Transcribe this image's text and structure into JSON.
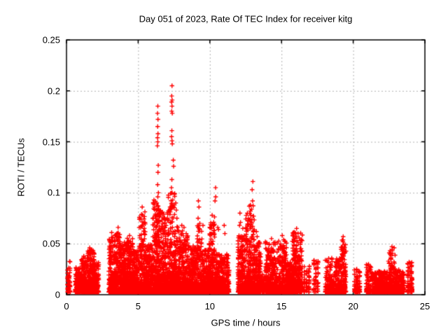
{
  "chart_data": {
    "type": "scatter",
    "title": "Day 051 of 2023, Rate Of TEC Index for receiver kitg",
    "xlabel": "GPS time / hours",
    "ylabel": "ROTI / TECUs",
    "xlim": [
      0,
      25
    ],
    "ylim": [
      0,
      0.25
    ],
    "xticks": [
      {
        "v": 0,
        "label": "0"
      },
      {
        "v": 5,
        "label": "5"
      },
      {
        "v": 10,
        "label": "10"
      },
      {
        "v": 15,
        "label": "15"
      },
      {
        "v": 20,
        "label": "20"
      },
      {
        "v": 25,
        "label": "25"
      }
    ],
    "yticks": [
      {
        "v": 0,
        "label": "0"
      },
      {
        "v": 0.05,
        "label": "0.05"
      },
      {
        "v": 0.1,
        "label": "0.1"
      },
      {
        "v": 0.15,
        "label": "0.15"
      },
      {
        "v": 0.2,
        "label": "0.2"
      },
      {
        "v": 0.25,
        "label": "0.25"
      }
    ],
    "grid": "dashed, at interior major ticks",
    "legend": "none",
    "marker": {
      "shape": "plus",
      "color": "#ff0000",
      "size": 7
    },
    "grid_color": "#b0b0b0",
    "border_color": "#000000",
    "seed": 42,
    "v_min": 0.0025,
    "dense_segments": [
      {
        "t0": 0.05,
        "t1": 0.28,
        "n": 45,
        "vmax": 0.033,
        "k": 2.0,
        "cols": 3
      },
      {
        "t0": 0.6,
        "t1": 1.05,
        "n": 150,
        "vmax": 0.027,
        "k": 2.4
      },
      {
        "t0": 1.05,
        "t1": 1.45,
        "n": 190,
        "vmax": 0.038,
        "k": 2.6
      },
      {
        "t0": 1.45,
        "t1": 1.95,
        "n": 250,
        "vmax": 0.044,
        "k": 2.6
      },
      {
        "t0": 1.95,
        "t1": 2.25,
        "n": 140,
        "vmax": 0.032,
        "k": 2.4
      },
      {
        "t0": 2.95,
        "t1": 3.35,
        "n": 200,
        "vmax": 0.058,
        "k": 3.4
      },
      {
        "t0": 3.35,
        "t1": 3.8,
        "n": 260,
        "vmax": 0.062,
        "k": 3.2
      },
      {
        "t0": 3.8,
        "t1": 4.2,
        "n": 250,
        "vmax": 0.052,
        "k": 3.0
      },
      {
        "t0": 4.2,
        "t1": 4.65,
        "n": 240,
        "vmax": 0.056,
        "k": 3.0
      },
      {
        "t0": 4.65,
        "t1": 5.05,
        "n": 210,
        "vmax": 0.044,
        "k": 2.8
      },
      {
        "t0": 5.05,
        "t1": 5.5,
        "n": 250,
        "vmax": 0.082,
        "k": 3.6
      },
      {
        "t0": 5.5,
        "t1": 6.0,
        "n": 260,
        "vmax": 0.05,
        "k": 2.9
      },
      {
        "t0": 6.0,
        "t1": 6.3,
        "n": 190,
        "vmax": 0.095,
        "k": 3.2
      },
      {
        "t0": 6.3,
        "t1": 6.55,
        "n": 170,
        "vmax": 0.088,
        "k": 2.7
      },
      {
        "t0": 6.55,
        "t1": 7.1,
        "n": 310,
        "vmax": 0.082,
        "k": 3.1
      },
      {
        "t0": 7.1,
        "t1": 7.55,
        "n": 250,
        "vmax": 0.1,
        "k": 2.8
      },
      {
        "t0": 7.55,
        "t1": 8.1,
        "n": 290,
        "vmax": 0.068,
        "k": 3.1
      },
      {
        "t0": 8.1,
        "t1": 8.6,
        "n": 250,
        "vmax": 0.058,
        "k": 3.0
      },
      {
        "t0": 8.6,
        "t1": 9.1,
        "n": 230,
        "vmax": 0.048,
        "k": 2.8
      },
      {
        "t0": 9.1,
        "t1": 9.45,
        "n": 160,
        "vmax": 0.068,
        "k": 2.7
      },
      {
        "t0": 9.45,
        "t1": 9.95,
        "n": 220,
        "vmax": 0.044,
        "k": 2.7
      },
      {
        "t0": 9.95,
        "t1": 10.35,
        "n": 210,
        "vmax": 0.078,
        "k": 2.9
      },
      {
        "t0": 10.35,
        "t1": 11.35,
        "n": 360,
        "vmax": 0.04,
        "k": 2.6
      },
      {
        "t0": 11.95,
        "t1": 12.45,
        "n": 230,
        "vmax": 0.058,
        "k": 2.9
      },
      {
        "t0": 12.45,
        "t1": 13.1,
        "n": 320,
        "vmax": 0.088,
        "k": 3.3
      },
      {
        "t0": 13.1,
        "t1": 13.55,
        "n": 210,
        "vmax": 0.052,
        "k": 2.9
      },
      {
        "t0": 13.55,
        "t1": 13.85,
        "n": 70,
        "vmax": 0.02,
        "k": 2.0
      },
      {
        "t0": 13.85,
        "t1": 14.7,
        "n": 350,
        "vmax": 0.052,
        "k": 3.0
      },
      {
        "t0": 14.7,
        "t1": 15.35,
        "n": 250,
        "vmax": 0.054,
        "k": 3.0
      },
      {
        "t0": 15.35,
        "t1": 15.75,
        "n": 160,
        "vmax": 0.032,
        "k": 2.4
      },
      {
        "t0": 15.75,
        "t1": 16.45,
        "n": 310,
        "vmax": 0.062,
        "k": 2.5
      },
      {
        "t0": 16.5,
        "t1": 17.0,
        "n": 55,
        "vmax": 0.028,
        "k": 1.8,
        "cols": 3
      },
      {
        "t0": 17.2,
        "t1": 17.6,
        "n": 50,
        "vmax": 0.035,
        "k": 1.8,
        "cols": 3
      },
      {
        "t0": 18.05,
        "t1": 19.15,
        "n": 320,
        "vmax": 0.036,
        "k": 2.7
      },
      {
        "t0": 19.15,
        "t1": 19.5,
        "n": 140,
        "vmax": 0.054,
        "k": 2.4
      },
      {
        "t0": 20.05,
        "t1": 20.5,
        "n": 85,
        "vmax": 0.026,
        "k": 2.1,
        "cols": 4
      },
      {
        "t0": 20.9,
        "t1": 21.25,
        "n": 85,
        "vmax": 0.03,
        "k": 2.2
      },
      {
        "t0": 21.3,
        "t1": 22.45,
        "n": 320,
        "vmax": 0.023,
        "k": 2.3
      },
      {
        "t0": 22.45,
        "t1": 22.95,
        "n": 190,
        "vmax": 0.046,
        "k": 2.8
      },
      {
        "t0": 22.95,
        "t1": 23.55,
        "n": 170,
        "vmax": 0.025,
        "k": 2.3
      },
      {
        "t0": 23.75,
        "t1": 24.15,
        "n": 100,
        "vmax": 0.032,
        "k": 2.2,
        "cols": 3
      }
    ],
    "peak_points": [
      [
        1.62,
        0.046
      ],
      [
        1.58,
        0.042
      ],
      [
        3.15,
        0.061
      ],
      [
        3.22,
        0.056
      ],
      [
        3.1,
        0.051
      ],
      [
        3.6,
        0.066
      ],
      [
        3.55,
        0.06
      ],
      [
        3.66,
        0.057
      ],
      [
        3.72,
        0.052
      ],
      [
        4.4,
        0.058
      ],
      [
        4.34,
        0.053
      ],
      [
        5.28,
        0.086
      ],
      [
        5.31,
        0.078
      ],
      [
        6.1,
        0.093
      ],
      [
        6.14,
        0.086
      ],
      [
        6.2,
        0.079
      ],
      [
        6.37,
        0.185
      ],
      [
        6.35,
        0.178
      ],
      [
        6.38,
        0.172
      ],
      [
        6.36,
        0.165
      ],
      [
        6.38,
        0.158
      ],
      [
        6.35,
        0.154
      ],
      [
        6.37,
        0.15
      ],
      [
        6.34,
        0.146
      ],
      [
        6.4,
        0.127
      ],
      [
        6.38,
        0.12
      ],
      [
        6.36,
        0.108
      ],
      [
        6.41,
        0.1
      ],
      [
        6.37,
        0.096
      ],
      [
        6.3,
        0.09
      ],
      [
        6.26,
        0.083
      ],
      [
        6.6,
        0.065
      ],
      [
        6.7,
        0.081
      ],
      [
        6.85,
        0.075
      ],
      [
        6.95,
        0.068
      ],
      [
        7.36,
        0.205
      ],
      [
        7.34,
        0.195
      ],
      [
        7.37,
        0.191
      ],
      [
        7.33,
        0.189
      ],
      [
        7.36,
        0.185
      ],
      [
        7.34,
        0.18
      ],
      [
        7.38,
        0.178
      ],
      [
        7.35,
        0.161
      ],
      [
        7.33,
        0.155
      ],
      [
        7.36,
        0.151
      ],
      [
        7.38,
        0.148
      ],
      [
        7.45,
        0.132
      ],
      [
        7.47,
        0.126
      ],
      [
        7.35,
        0.113
      ],
      [
        7.32,
        0.105
      ],
      [
        7.37,
        0.1
      ],
      [
        7.41,
        0.093
      ],
      [
        7.62,
        0.09
      ],
      [
        7.66,
        0.083
      ],
      [
        7.7,
        0.075
      ],
      [
        8.2,
        0.066
      ],
      [
        8.35,
        0.06
      ],
      [
        9.2,
        0.092
      ],
      [
        9.24,
        0.086
      ],
      [
        9.18,
        0.075
      ],
      [
        9.3,
        0.07
      ],
      [
        9.52,
        0.068
      ],
      [
        10.4,
        0.105
      ],
      [
        10.41,
        0.096
      ],
      [
        10.36,
        0.092
      ],
      [
        10.16,
        0.078
      ],
      [
        10.55,
        0.066
      ],
      [
        10.6,
        0.064
      ],
      [
        11.0,
        0.068
      ],
      [
        11.05,
        0.06
      ],
      [
        12.1,
        0.08
      ],
      [
        12.14,
        0.071
      ],
      [
        12.07,
        0.068
      ],
      [
        12.3,
        0.065
      ],
      [
        12.25,
        0.057
      ],
      [
        13.0,
        0.111
      ],
      [
        12.95,
        0.103
      ],
      [
        12.98,
        0.092
      ],
      [
        12.9,
        0.084
      ],
      [
        12.85,
        0.078
      ],
      [
        13.02,
        0.077
      ],
      [
        12.8,
        0.072
      ],
      [
        12.92,
        0.07
      ],
      [
        12.88,
        0.066
      ],
      [
        13.05,
        0.062
      ],
      [
        13.25,
        0.062
      ],
      [
        13.3,
        0.057
      ],
      [
        14.3,
        0.055
      ],
      [
        14.45,
        0.051
      ],
      [
        15.05,
        0.058
      ],
      [
        15.15,
        0.054
      ],
      [
        16.05,
        0.065
      ],
      [
        16.15,
        0.06
      ],
      [
        19.3,
        0.057
      ],
      [
        19.28,
        0.052
      ],
      [
        22.7,
        0.047
      ],
      [
        22.72,
        0.043
      ],
      [
        23.9,
        0.032
      ]
    ]
  }
}
